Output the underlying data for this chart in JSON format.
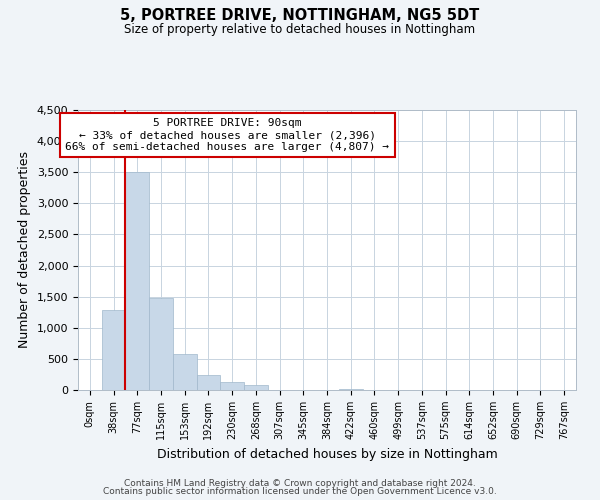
{
  "title": "5, PORTREE DRIVE, NOTTINGHAM, NG5 5DT",
  "subtitle": "Size of property relative to detached houses in Nottingham",
  "xlabel": "Distribution of detached houses by size in Nottingham",
  "ylabel": "Number of detached properties",
  "bar_labels": [
    "0sqm",
    "38sqm",
    "77sqm",
    "115sqm",
    "153sqm",
    "192sqm",
    "230sqm",
    "268sqm",
    "307sqm",
    "345sqm",
    "384sqm",
    "422sqm",
    "460sqm",
    "499sqm",
    "537sqm",
    "575sqm",
    "614sqm",
    "652sqm",
    "690sqm",
    "729sqm",
    "767sqm"
  ],
  "bar_values": [
    0,
    1280,
    3500,
    1480,
    575,
    245,
    130,
    75,
    0,
    0,
    0,
    20,
    0,
    0,
    0,
    0,
    0,
    0,
    0,
    0,
    0
  ],
  "bar_color": "#c8d8e8",
  "bar_edge_color": "#a0b8cc",
  "ylim": [
    0,
    4500
  ],
  "yticks": [
    0,
    500,
    1000,
    1500,
    2000,
    2500,
    3000,
    3500,
    4000,
    4500
  ],
  "vline_x": 2,
  "vline_color": "#cc0000",
  "annotation_box_text": "5 PORTREE DRIVE: 90sqm\n← 33% of detached houses are smaller (2,396)\n66% of semi-detached houses are larger (4,807) →",
  "footer1": "Contains HM Land Registry data © Crown copyright and database right 2024.",
  "footer2": "Contains public sector information licensed under the Open Government Licence v3.0.",
  "background_color": "#f0f4f8",
  "plot_background_color": "#ffffff",
  "grid_color": "#c8d4e0"
}
